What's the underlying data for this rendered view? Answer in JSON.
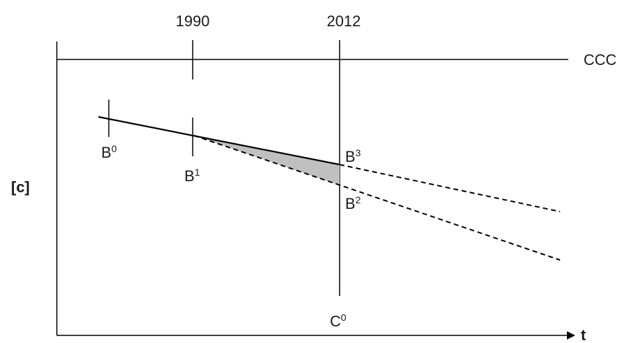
{
  "labels": {
    "year_1990": "1990",
    "year_2012": "2012",
    "ccc": "CCC",
    "y_axis": "[c]",
    "x_axis": "t",
    "b0": {
      "base": "B",
      "sup": "0"
    },
    "b1": {
      "base": "B",
      "sup": "1"
    },
    "b2": {
      "base": "B",
      "sup": "2"
    },
    "b3": {
      "base": "B",
      "sup": "3"
    },
    "c0": {
      "base": "C",
      "sup": "0"
    }
  },
  "colors": {
    "line": "#000000",
    "shaded_region": "#c0c0c0"
  }
}
